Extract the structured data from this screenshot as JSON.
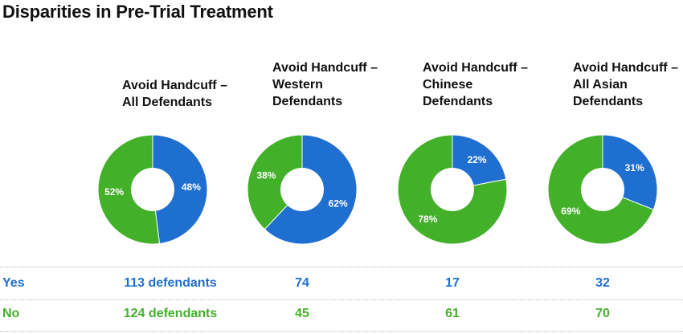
{
  "title": "Disparities in Pre-Trial Treatment",
  "colors": {
    "yes": "#1f6fd1",
    "no": "#43b02a",
    "text": "#111111"
  },
  "chart_data": [
    {
      "type": "pie",
      "title_lines": [
        "Avoid Handcuff –",
        "All Defendants"
      ],
      "labels": [
        "Yes",
        "No"
      ],
      "values": [
        48,
        52
      ],
      "value_labels": [
        "48%",
        "52%"
      ],
      "hole": true
    },
    {
      "type": "pie",
      "title_lines": [
        "Avoid Handcuff –",
        "Western",
        "Defendants"
      ],
      "labels": [
        "Yes",
        "No"
      ],
      "values": [
        62,
        38
      ],
      "value_labels": [
        "62%",
        "38%"
      ],
      "hole": true
    },
    {
      "type": "pie",
      "title_lines": [
        "Avoid Handcuff –",
        "Chinese",
        "Defendants"
      ],
      "labels": [
        "Yes",
        "No"
      ],
      "values": [
        22,
        78
      ],
      "value_labels": [
        "22%",
        "78%"
      ],
      "hole": true
    },
    {
      "type": "pie",
      "title_lines": [
        "Avoid Handcuff –",
        "All Asian",
        "Defendants"
      ],
      "labels": [
        "Yes",
        "No"
      ],
      "values": [
        31,
        69
      ],
      "value_labels": [
        "31%",
        "69%"
      ],
      "hole": true
    }
  ],
  "table": {
    "rows": [
      {
        "label": "Yes",
        "values": [
          "113 defendants",
          "74",
          "17",
          "32"
        ]
      },
      {
        "label": "No",
        "values": [
          "124 defendants",
          "45",
          "61",
          "70"
        ]
      }
    ]
  }
}
